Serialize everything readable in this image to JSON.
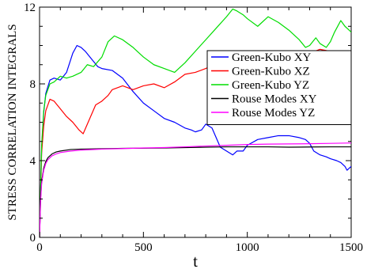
{
  "chart_data": {
    "type": "line",
    "title": "",
    "xlabel": "t",
    "ylabel": "STRESS CORRELATION INTEGRALS",
    "xlim": [
      0,
      1500
    ],
    "ylim": [
      0,
      12
    ],
    "xticks": [
      0,
      500,
      1000,
      1500
    ],
    "yticks": [
      0,
      4,
      8,
      12
    ],
    "grid": false,
    "legend_position": "right",
    "series": [
      {
        "name": "Green-Kubo XY",
        "color": "#0000ff",
        "x": [
          0,
          10,
          20,
          30,
          50,
          70,
          100,
          130,
          160,
          180,
          200,
          220,
          250,
          280,
          300,
          350,
          400,
          450,
          500,
          550,
          600,
          650,
          700,
          730,
          750,
          780,
          800,
          830,
          850,
          870,
          900,
          930,
          950,
          980,
          1000,
          1050,
          1100,
          1150,
          1200,
          1250,
          1280,
          1300,
          1320,
          1350,
          1380,
          1400,
          1430,
          1450,
          1470,
          1480,
          1490,
          1500
        ],
        "y": [
          0,
          4.6,
          6.5,
          7.5,
          8.2,
          8.3,
          8.2,
          8.6,
          9.6,
          10.0,
          9.9,
          9.7,
          9.3,
          8.9,
          8.8,
          8.7,
          8.3,
          7.6,
          7.0,
          6.6,
          6.2,
          6.0,
          5.7,
          5.6,
          5.5,
          5.6,
          5.9,
          5.7,
          5.2,
          4.7,
          4.5,
          4.3,
          4.5,
          4.5,
          4.8,
          5.1,
          5.2,
          5.3,
          5.3,
          5.2,
          5.1,
          4.9,
          4.5,
          4.3,
          4.2,
          4.1,
          4.0,
          3.9,
          3.7,
          3.5,
          3.6,
          3.7
        ]
      },
      {
        "name": "Green-Kubo XZ",
        "color": "#ff0000",
        "x": [
          0,
          10,
          20,
          30,
          50,
          70,
          100,
          130,
          160,
          190,
          210,
          230,
          250,
          270,
          300,
          330,
          350,
          400,
          450,
          500,
          550,
          600,
          650,
          700,
          750,
          800,
          850,
          900,
          950,
          1000,
          1050,
          1100,
          1150,
          1200,
          1250,
          1300,
          1350,
          1400,
          1450,
          1480,
          1500
        ],
        "y": [
          0,
          4.4,
          5.8,
          6.6,
          7.2,
          7.1,
          6.7,
          6.3,
          6.0,
          5.6,
          5.4,
          5.9,
          6.4,
          6.9,
          7.1,
          7.4,
          7.7,
          7.9,
          7.7,
          7.9,
          8.0,
          7.8,
          8.1,
          8.5,
          8.6,
          8.8,
          9.1,
          9.0,
          9.2,
          9.3,
          9.4,
          9.5,
          9.6,
          9.5,
          9.7,
          9.6,
          9.8,
          9.7,
          9.5,
          9.3,
          9.4
        ]
      },
      {
        "name": "Green-Kubo YZ",
        "color": "#00dd00",
        "x": [
          0,
          10,
          20,
          30,
          50,
          70,
          100,
          130,
          160,
          200,
          230,
          260,
          300,
          330,
          360,
          400,
          450,
          500,
          550,
          600,
          650,
          700,
          750,
          800,
          850,
          900,
          930,
          950,
          980,
          1000,
          1050,
          1100,
          1150,
          1200,
          1250,
          1280,
          1300,
          1330,
          1350,
          1380,
          1400,
          1420,
          1450,
          1470,
          1490,
          1500
        ],
        "y": [
          0,
          4.8,
          6.6,
          7.4,
          8.0,
          8.1,
          8.4,
          8.3,
          8.4,
          8.6,
          9.0,
          8.9,
          9.4,
          10.2,
          10.5,
          10.3,
          9.9,
          9.4,
          9.0,
          8.8,
          8.6,
          9.1,
          9.7,
          10.3,
          10.9,
          11.5,
          11.9,
          11.8,
          11.6,
          11.4,
          11.0,
          11.5,
          11.2,
          10.8,
          10.3,
          9.9,
          10.0,
          10.4,
          10.1,
          9.9,
          10.2,
          10.7,
          11.3,
          11.0,
          10.8,
          10.7
        ]
      },
      {
        "name": "Rouse Modes XY",
        "color": "#000000",
        "x": [
          0,
          5,
          10,
          20,
          30,
          40,
          60,
          80,
          100,
          150,
          200,
          300,
          400,
          500,
          600,
          700,
          800,
          900,
          1000,
          1100,
          1200,
          1300,
          1400,
          1500
        ],
        "y": [
          0,
          2.0,
          2.9,
          3.6,
          3.95,
          4.15,
          4.35,
          4.45,
          4.5,
          4.58,
          4.6,
          4.62,
          4.64,
          4.65,
          4.66,
          4.68,
          4.7,
          4.72,
          4.72,
          4.72,
          4.7,
          4.71,
          4.72,
          4.72
        ]
      },
      {
        "name": "Rouse Modes YZ",
        "color": "#ff00ff",
        "x": [
          0,
          5,
          10,
          20,
          30,
          40,
          60,
          80,
          100,
          150,
          200,
          300,
          400,
          500,
          600,
          700,
          800,
          900,
          1000,
          1100,
          1200,
          1300,
          1400,
          1500
        ],
        "y": [
          0,
          1.9,
          2.8,
          3.5,
          3.85,
          4.05,
          4.25,
          4.35,
          4.42,
          4.5,
          4.55,
          4.6,
          4.63,
          4.66,
          4.68,
          4.72,
          4.76,
          4.8,
          4.84,
          4.86,
          4.87,
          4.88,
          4.9,
          4.92
        ]
      }
    ]
  }
}
